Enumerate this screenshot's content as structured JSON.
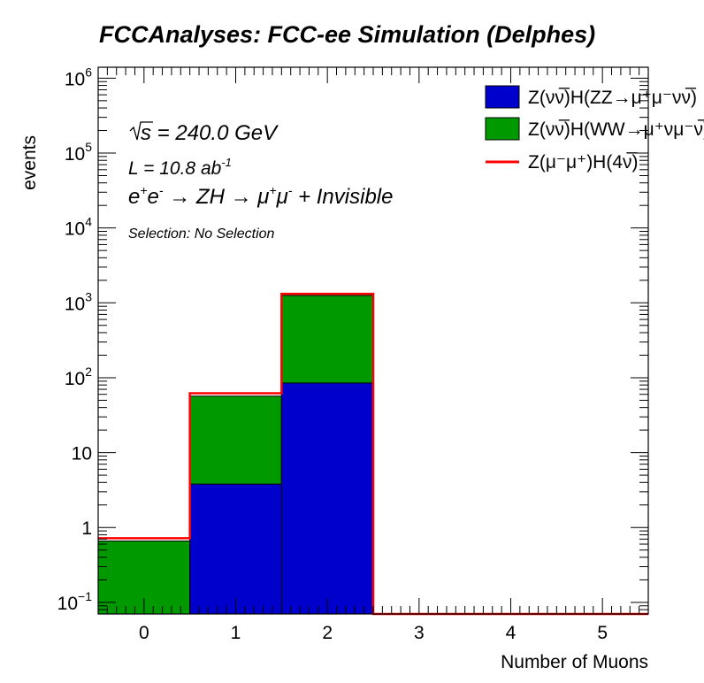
{
  "chart_data": {
    "type": "bar",
    "stacked": true,
    "title": "FCCAnalyses: FCC-ee Simulation (Delphes)",
    "xlabel": "Number of Muons",
    "ylabel": "events",
    "x": [
      0,
      1,
      2,
      3,
      4,
      5
    ],
    "xlim": [
      -0.5,
      5.5
    ],
    "ylim": [
      0.07,
      1400000
    ],
    "yscale": "log",
    "x_tick_labels": [
      "0",
      "1",
      "2",
      "3",
      "4",
      "5"
    ],
    "y_tick_labels": [
      {
        "value": 0.1,
        "base": "10",
        "exp": "−1"
      },
      {
        "value": 1,
        "base": "1",
        "exp": ""
      },
      {
        "value": 10,
        "base": "10",
        "exp": ""
      },
      {
        "value": 100,
        "base": "10",
        "exp": "2"
      },
      {
        "value": 1000,
        "base": "10",
        "exp": "3"
      },
      {
        "value": 10000,
        "base": "10",
        "exp": "4"
      },
      {
        "value": 100000,
        "base": "10",
        "exp": "5"
      },
      {
        "value": 1000000,
        "base": "10",
        "exp": "6"
      }
    ],
    "series": [
      {
        "name": "Z(νν̅)H(ZZ→μ⁺μ⁻νν̅)",
        "style": "fill",
        "color": "#0000cc",
        "values": [
          0,
          3.8,
          85,
          0,
          0,
          0
        ]
      },
      {
        "name": "Z(νν̅)H(WW→μ⁺νμ⁻ν̅)",
        "style": "fill",
        "color": "#009900",
        "values": [
          0.66,
          53,
          1170,
          0,
          0,
          0
        ]
      },
      {
        "name": "Z(μ⁻μ⁺)H(4ν̅)",
        "style": "line",
        "color": "#ff0000",
        "values": [
          0.72,
          62,
          1320,
          0,
          0,
          0
        ]
      }
    ],
    "annotations": {
      "sqrt_s_symbol": "s",
      "energy": " = 240.0 GeV",
      "lumi_prefix": "L = 10.8 ab",
      "lumi_exp": "-1",
      "process_parts": [
        "e",
        "+",
        "e",
        "-",
        " → ZH → μ",
        "+",
        "μ",
        "-",
        " + Invisible"
      ],
      "selection": "Selection: No Selection"
    },
    "grid": false,
    "legend_position": "top-right"
  }
}
